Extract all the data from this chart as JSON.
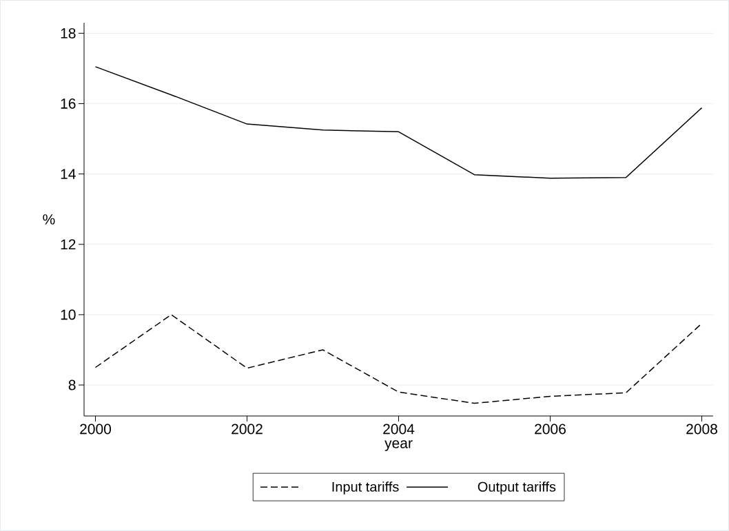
{
  "chart_data": {
    "type": "line",
    "xlabel": "year",
    "ylabel": "%",
    "x": [
      2000,
      2001,
      2002,
      2003,
      2004,
      2005,
      2006,
      2007,
      2008
    ],
    "series": [
      {
        "name": "Input tariffs",
        "color": "#000000",
        "line_style": "dashed",
        "values": [
          8.5,
          10.0,
          8.48,
          9.0,
          7.8,
          7.48,
          7.68,
          7.78,
          9.75
        ]
      },
      {
        "name": "Output tariffs",
        "color": "#000000",
        "line_style": "solid",
        "values": [
          17.05,
          16.25,
          15.42,
          15.25,
          15.2,
          13.98,
          13.88,
          13.9,
          15.88
        ]
      }
    ],
    "xlim": [
      1999.85,
      2008.15
    ],
    "ylim": [
      7.12,
      18.3
    ],
    "xticks": [
      2000,
      2002,
      2004,
      2006,
      2008
    ],
    "yticks": [
      8,
      10,
      12,
      14,
      16,
      18
    ],
    "grid": "y",
    "legend": "bottom",
    "marker": "none"
  }
}
